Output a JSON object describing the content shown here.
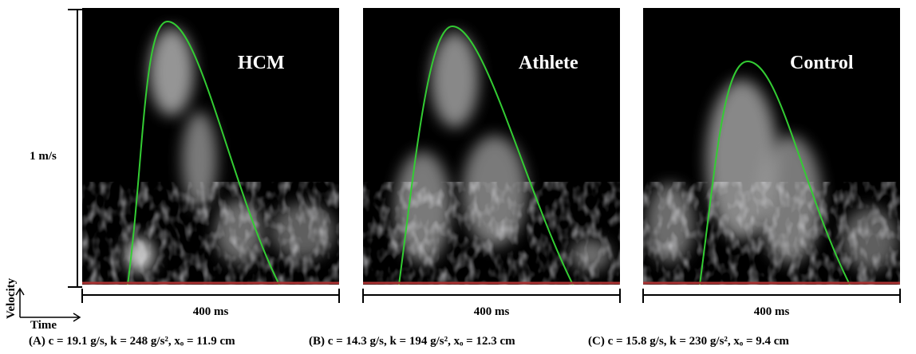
{
  "axis": {
    "y_scale": "1 m/s",
    "y_label": "Velocity",
    "x_label": "Time"
  },
  "panels": [
    {
      "label": "HCM",
      "scale": "400 ms",
      "caption": "(A) c = 19.1 g/s, k = 248 g/s², xₒ = 11.9 cm"
    },
    {
      "label": "Athlete",
      "scale": "400 ms",
      "caption": "(B) c = 14.3 g/s, k = 194 g/s², xₒ = 12.3 cm"
    },
    {
      "label": "Control",
      "scale": "400 ms",
      "caption": "(C) c = 15.8 g/s, k = 230 g/s², xₒ = 9.4 cm"
    }
  ]
}
